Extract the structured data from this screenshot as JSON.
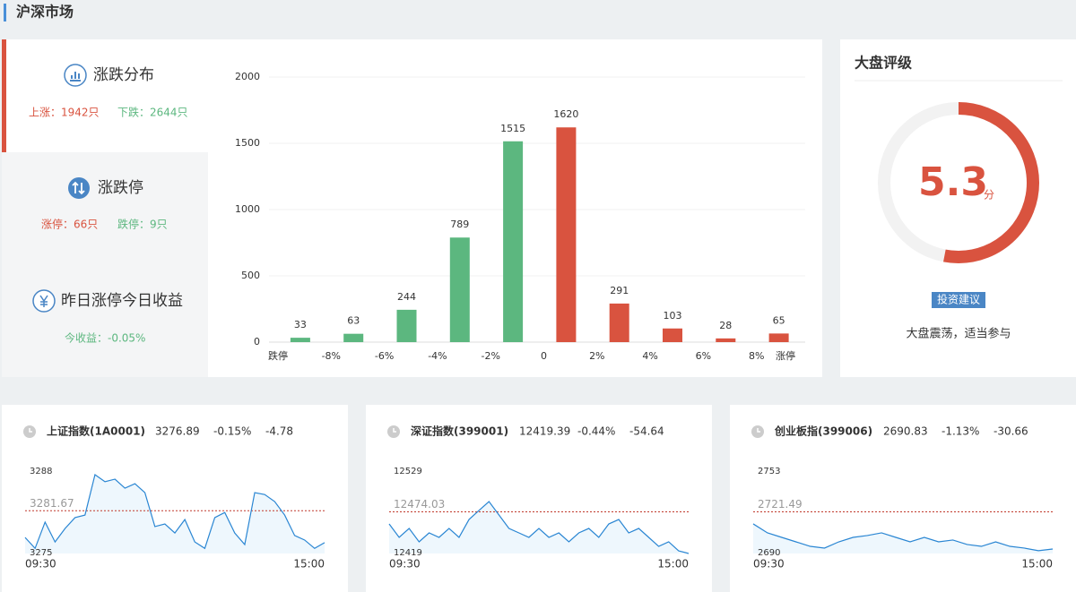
{
  "header": {
    "title": "沪深市场"
  },
  "tabs": [
    {
      "title": "涨跌分布",
      "items": [
        "上涨：1942只",
        "下跌：2644只"
      ]
    },
    {
      "title": "涨跌停",
      "items": [
        "涨停：66只",
        "跌停：9只"
      ]
    },
    {
      "title": "昨日涨停今日收益",
      "items": [
        "今收益：-0.05%"
      ]
    }
  ],
  "chart_data": {
    "type": "bar",
    "bin_labels": [
      "跌停",
      "-8%",
      "-6%",
      "-4%",
      "-2%",
      "0",
      "2%",
      "4%",
      "6%",
      "8%",
      "涨停"
    ],
    "values": [
      33,
      63,
      244,
      789,
      1515,
      1620,
      291,
      103,
      28,
      65
    ],
    "colors": [
      "#5cb77f",
      "#5cb77f",
      "#5cb77f",
      "#5cb77f",
      "#5cb77f",
      "#d9533f",
      "#d9533f",
      "#d9533f",
      "#d9533f",
      "#d9533f"
    ],
    "ylim": [
      0,
      2000
    ],
    "yticks": [
      0,
      500,
      1000,
      1500,
      2000
    ],
    "grid": true
  },
  "rating": {
    "title": "大盘评级",
    "score": 5.3,
    "unit": "分",
    "lim": [
      0,
      10
    ],
    "color": "#d9533f",
    "badge": "投资建议",
    "advice": "大盘震荡，适当参与"
  },
  "indices": [
    {
      "name": "上证指数(1A0001)",
      "price": "3276.89",
      "pct": "-0.15%",
      "change": "-4.78",
      "ref": 3281.67,
      "ylim": [
        3275,
        3288
      ],
      "times": [
        "09:30",
        "15:00"
      ],
      "color": "#2a86d3",
      "values": [
        3277.5,
        3275.8,
        3279.9,
        3276.8,
        3278.9,
        3280.6,
        3281.0,
        3287.3,
        3286.2,
        3286.6,
        3285.2,
        3285.9,
        3284.5,
        3279.2,
        3279.6,
        3278.2,
        3280.3,
        3276.8,
        3275.8,
        3280.6,
        3281.4,
        3278.2,
        3276.4,
        3284.5,
        3284.2,
        3283.1,
        3281.0,
        3277.8,
        3277.1,
        3275.8,
        3276.7
      ]
    },
    {
      "name": "深证指数(399001)",
      "price": "12419.39",
      "pct": "-0.44%",
      "change": "-54.64",
      "ref": 12474.03,
      "ylim": [
        12419,
        12529
      ],
      "times": [
        "09:30",
        "15:00"
      ],
      "color": "#2a86d3",
      "values": [
        12458.0,
        12440.3,
        12452.1,
        12434.4,
        12446.2,
        12440.3,
        12452.1,
        12440.3,
        12463.9,
        12475.8,
        12487.6,
        12469.9,
        12452.1,
        12446.2,
        12440.3,
        12452.1,
        12440.3,
        12446.2,
        12434.4,
        12446.2,
        12452.1,
        12440.3,
        12458.0,
        12463.9,
        12446.2,
        12452.1,
        12440.3,
        12428.4,
        12434.4,
        12422.5,
        12419.0
      ]
    },
    {
      "name": "创业板指(399006)",
      "price": "2690.83",
      "pct": "-1.13%",
      "change": "-30.66",
      "ref": 2721.49,
      "ylim": [
        2690,
        2753
      ],
      "times": [
        "09:30",
        "15:00"
      ],
      "color": "#2a86d3",
      "values": [
        2712.4,
        2705.6,
        2702.2,
        2698.8,
        2695.4,
        2694.1,
        2698.8,
        2702.2,
        2703.6,
        2705.6,
        2702.2,
        2698.8,
        2702.2,
        2698.8,
        2700.2,
        2696.8,
        2695.4,
        2698.8,
        2695.4,
        2694.1,
        2692.1,
        2693.4
      ]
    }
  ]
}
